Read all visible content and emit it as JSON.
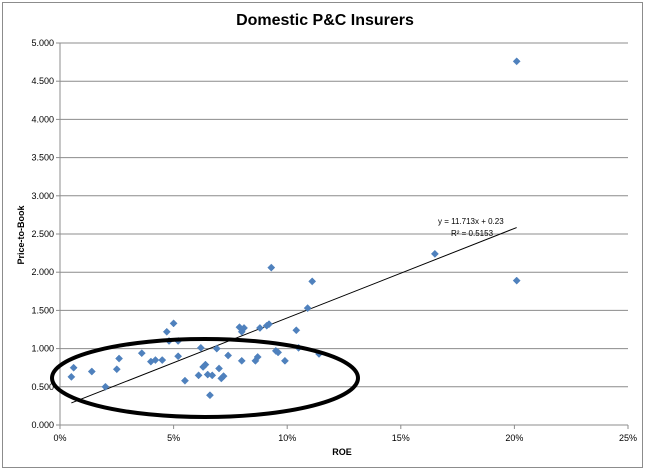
{
  "chart_data": {
    "type": "scatter",
    "title": "Domestic P&C Insurers",
    "xlabel": "ROE",
    "ylabel": "Price-to-Book",
    "xlim": [
      0,
      0.25
    ],
    "ylim": [
      0,
      5
    ],
    "x_ticks": [
      0,
      0.05,
      0.1,
      0.15,
      0.2,
      0.25
    ],
    "x_tick_labels": [
      "0%",
      "5%",
      "10%",
      "15%",
      "20%",
      "25%"
    ],
    "y_ticks": [
      0,
      0.5,
      1,
      1.5,
      2,
      2.5,
      3,
      3.5,
      4,
      4.5,
      5
    ],
    "y_tick_labels": [
      "0.000",
      "0.500",
      "1.000",
      "1.500",
      "2.000",
      "2.500",
      "3.000",
      "3.500",
      "4.000",
      "4.500",
      "5.000"
    ],
    "grid": "horizontal",
    "legend": "none",
    "marker_color": "#4f81bd",
    "trendline": {
      "slope": 11.713,
      "intercept": 0.23,
      "x_range": [
        0.005,
        0.201
      ],
      "equation_label": "y = 11.713x + 0.23",
      "r2_label": "R² = 0.5153"
    },
    "series": [
      {
        "x": [
          0.005,
          0.006,
          0.014,
          0.02,
          0.025,
          0.026,
          0.036,
          0.04,
          0.042,
          0.045,
          0.047,
          0.048,
          0.05,
          0.052,
          0.052,
          0.055,
          0.061,
          0.062,
          0.063,
          0.064,
          0.065,
          0.066,
          0.067,
          0.069,
          0.07,
          0.071,
          0.072,
          0.074,
          0.079,
          0.08,
          0.08,
          0.081,
          0.086,
          0.087,
          0.088,
          0.091,
          0.092,
          0.093,
          0.095,
          0.096,
          0.099,
          0.104,
          0.105,
          0.109,
          0.111,
          0.114,
          0.165,
          0.201,
          0.201
        ],
        "y": [
          0.63,
          0.75,
          0.7,
          0.5,
          0.73,
          0.87,
          0.94,
          0.83,
          0.85,
          0.85,
          1.22,
          1.1,
          1.33,
          0.9,
          1.1,
          0.58,
          0.65,
          1.01,
          0.76,
          0.79,
          0.66,
          0.39,
          0.65,
          1.0,
          0.74,
          0.61,
          0.64,
          0.91,
          1.28,
          1.22,
          0.84,
          1.27,
          0.84,
          0.89,
          1.27,
          1.3,
          1.32,
          2.06,
          0.97,
          0.95,
          0.84,
          1.24,
          1.01,
          1.53,
          1.88,
          0.93,
          2.24,
          4.76,
          1.89
        ]
      }
    ]
  }
}
